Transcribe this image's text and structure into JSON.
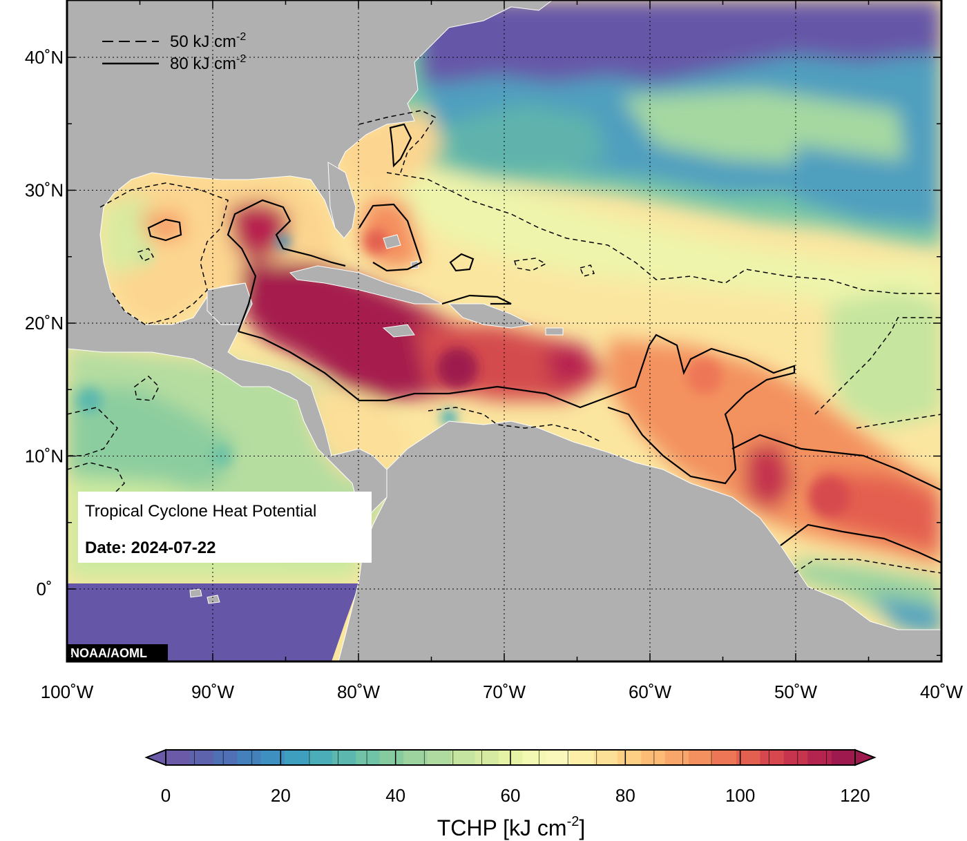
{
  "title": "Tropical Cyclone Heat Potential",
  "date_label": "Date: 2024-07-22",
  "credit": "NOAA/AOML",
  "legend": {
    "dashed_label": "50 kJ cm",
    "dashed_sup": "-2",
    "solid_label": "80 kJ cm",
    "solid_sup": "-2"
  },
  "axes": {
    "lon_labels": [
      "100˚W",
      "90˚W",
      "80˚W",
      "70˚W",
      "60˚W",
      "50˚W",
      "40˚W"
    ],
    "lat_labels": [
      "40˚N",
      "30˚N",
      "20˚N",
      "10˚N",
      "0˚"
    ],
    "lon_range": [
      -100,
      -40
    ],
    "lat_range": [
      -5,
      44
    ]
  },
  "colorbar": {
    "title": "TCHP [kJ cm",
    "title_sup": "-2",
    "title_end": "]",
    "ticks": [
      "0",
      "20",
      "40",
      "60",
      "80",
      "100",
      "120"
    ],
    "range": [
      0,
      120
    ],
    "colors": [
      "#6a5aa8",
      "#5d63ad",
      "#4f70b4",
      "#4480ba",
      "#3d90bf",
      "#3f9fbf",
      "#4aadb8",
      "#5cb8ae",
      "#70c3a6",
      "#86cba0",
      "#9cd39f",
      "#b0dba0",
      "#c4e49f",
      "#d6eba1",
      "#e6f2a6",
      "#f3f8b3",
      "#fbf8bb",
      "#fdefa7",
      "#fde097",
      "#fdcf85",
      "#fcbc76",
      "#f9a66a",
      "#f48f5f",
      "#ed7656",
      "#e35f50",
      "#d6484d",
      "#c7344e",
      "#b3244f",
      "#9e1a4e"
    ]
  }
}
